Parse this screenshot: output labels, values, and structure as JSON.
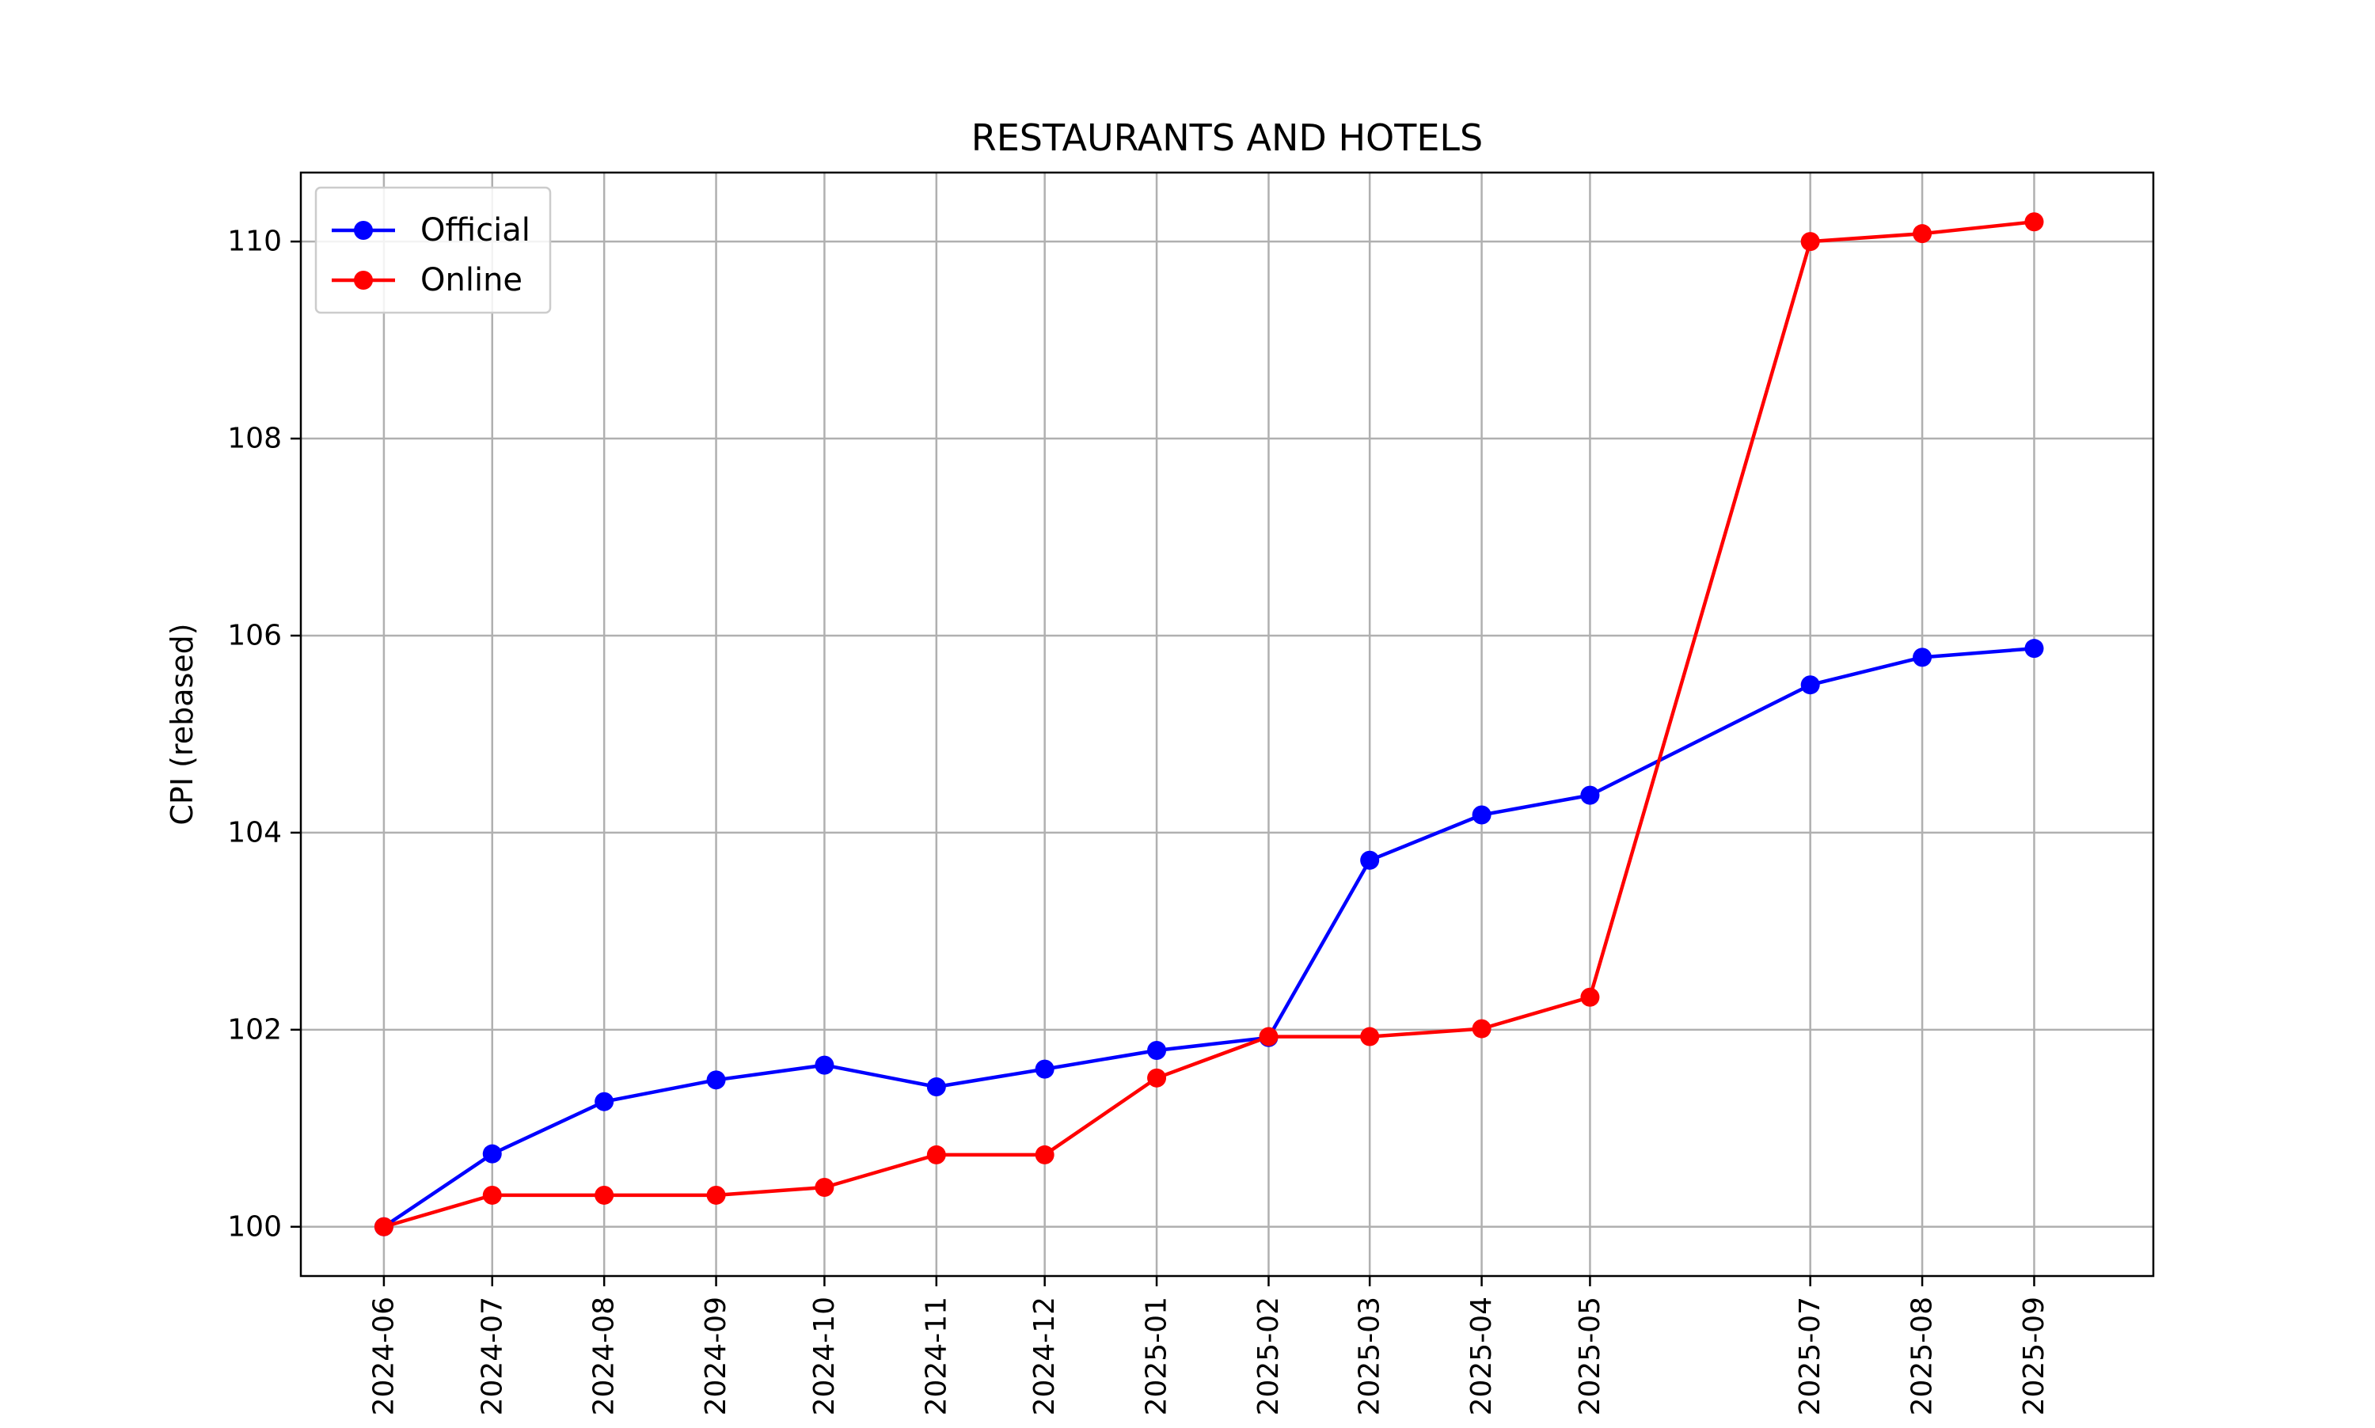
{
  "chart_data": {
    "type": "line",
    "title": "RESTAURANTS AND HOTELS",
    "xlabel": "",
    "ylabel": "CPI (rebased)",
    "x": [
      "2024-06",
      "2024-07",
      "2024-08",
      "2024-09",
      "2024-10",
      "2024-11",
      "2024-12",
      "2025-01",
      "2025-02",
      "2025-03",
      "2025-04",
      "2025-05",
      "2025-07",
      "2025-08",
      "2025-09"
    ],
    "xtick_labels": [
      "2024-06",
      "2024-07",
      "2024-08",
      "2024-09",
      "2024-10",
      "2024-11",
      "2024-12",
      "2025-01",
      "2025-02",
      "2025-03",
      "2025-04",
      "2025-05",
      "2025-07",
      "2025-08",
      "2025-09"
    ],
    "yticks": [
      100,
      102,
      104,
      106,
      108,
      110
    ],
    "ylim": [
      99.5,
      110.7
    ],
    "xlim": [
      "2024-05-09",
      "2025-10-04"
    ],
    "grid": true,
    "legend_position": "top-left",
    "series": [
      {
        "name": "Official",
        "color": "#0000ff",
        "marker": "circle",
        "values": [
          100.0,
          100.74,
          101.27,
          101.49,
          101.64,
          101.42,
          101.6,
          101.79,
          101.92,
          103.72,
          104.18,
          104.38,
          105.5,
          105.78,
          105.87
        ]
      },
      {
        "name": "Online",
        "color": "#ff0000",
        "marker": "circle",
        "values": [
          100.0,
          100.32,
          100.32,
          100.32,
          100.4,
          100.73,
          100.73,
          101.51,
          101.93,
          101.93,
          102.01,
          102.33,
          110.0,
          110.08,
          110.2
        ]
      }
    ]
  }
}
